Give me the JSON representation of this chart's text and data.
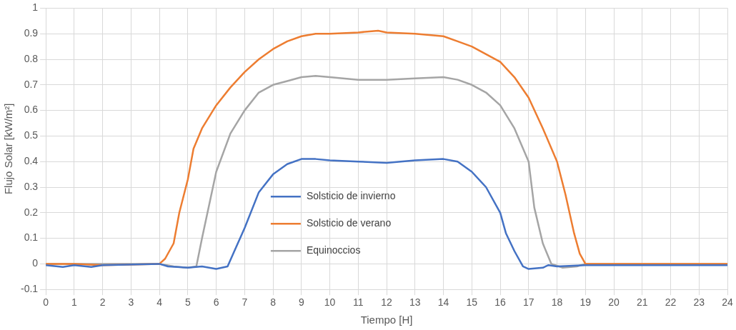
{
  "chart_data": {
    "type": "line",
    "xlabel": "Tiempo [H]",
    "ylabel": "Flujo Solar [kW/m²]",
    "xlim": [
      0,
      24
    ],
    "ylim": [
      -0.1,
      1
    ],
    "xticks": [
      0,
      1,
      2,
      3,
      4,
      5,
      6,
      7,
      8,
      9,
      10,
      11,
      12,
      13,
      14,
      15,
      16,
      17,
      18,
      19,
      20,
      21,
      22,
      23,
      24
    ],
    "yticks": [
      -0.1,
      0,
      0.1,
      0.2,
      0.3,
      0.4,
      0.5,
      0.6,
      0.7,
      0.8,
      0.9,
      1
    ],
    "grid": true,
    "legend": "bottom",
    "marker": "none",
    "line_style": "solid",
    "series": [
      {
        "name": "Solsticio de invierno",
        "color": "#4472c4",
        "x": [
          0,
          0.6,
          1,
          1.6,
          2,
          4,
          4.3,
          5,
          5.5,
          6,
          6.4,
          6.6,
          7,
          7.5,
          8,
          8.5,
          9,
          9.5,
          10,
          11,
          12,
          13,
          14,
          14.5,
          15,
          15.5,
          16,
          16.2,
          16.5,
          16.8,
          17,
          17.5,
          17.7,
          18,
          19,
          20,
          24
        ],
        "values": [
          -0.005,
          -0.012,
          -0.005,
          -0.012,
          -0.005,
          0,
          -0.01,
          -0.015,
          -0.01,
          -0.02,
          -0.01,
          0.04,
          0.14,
          0.28,
          0.35,
          0.39,
          0.41,
          0.41,
          0.405,
          0.4,
          0.395,
          0.405,
          0.41,
          0.4,
          0.36,
          0.3,
          0.2,
          0.12,
          0.05,
          -0.01,
          -0.02,
          -0.015,
          -0.005,
          -0.01,
          -0.005,
          -0.005,
          -0.005
        ]
      },
      {
        "name": "Solsticio de verano",
        "color": "#ed7d31",
        "x": [
          0,
          1,
          2,
          4,
          4.2,
          4.5,
          4.7,
          5,
          5.2,
          5.5,
          6,
          6.5,
          7,
          7.5,
          8,
          8.5,
          9,
          9.5,
          10,
          11,
          11.7,
          12,
          13,
          14,
          14.5,
          15,
          15.5,
          16,
          16.5,
          17,
          17.5,
          18,
          18.3,
          18.6,
          18.8,
          19,
          20,
          24
        ],
        "values": [
          0,
          0,
          -0.005,
          0,
          0.02,
          0.08,
          0.2,
          0.33,
          0.45,
          0.53,
          0.62,
          0.69,
          0.75,
          0.8,
          0.84,
          0.87,
          0.89,
          0.9,
          0.9,
          0.905,
          0.912,
          0.905,
          0.9,
          0.89,
          0.87,
          0.85,
          0.82,
          0.79,
          0.73,
          0.65,
          0.53,
          0.4,
          0.27,
          0.12,
          0.04,
          0,
          0,
          0
        ]
      },
      {
        "name": "Equinoccios",
        "color": "#a5a5a5",
        "x": [
          0,
          4,
          4.5,
          5,
          5.3,
          5.5,
          6,
          6.5,
          7,
          7.5,
          8,
          8.5,
          9,
          9.5,
          10,
          11,
          12,
          13,
          14,
          14.5,
          15,
          15.5,
          16,
          16.5,
          17,
          17.2,
          17.5,
          17.8,
          18.2,
          18.7,
          19,
          24
        ],
        "values": [
          0,
          0,
          -0.01,
          -0.015,
          -0.01,
          0.1,
          0.36,
          0.51,
          0.6,
          0.67,
          0.7,
          0.715,
          0.73,
          0.735,
          0.73,
          0.72,
          0.72,
          0.725,
          0.73,
          0.72,
          0.7,
          0.67,
          0.62,
          0.53,
          0.4,
          0.22,
          0.08,
          0,
          -0.015,
          -0.01,
          0,
          0
        ]
      }
    ]
  }
}
